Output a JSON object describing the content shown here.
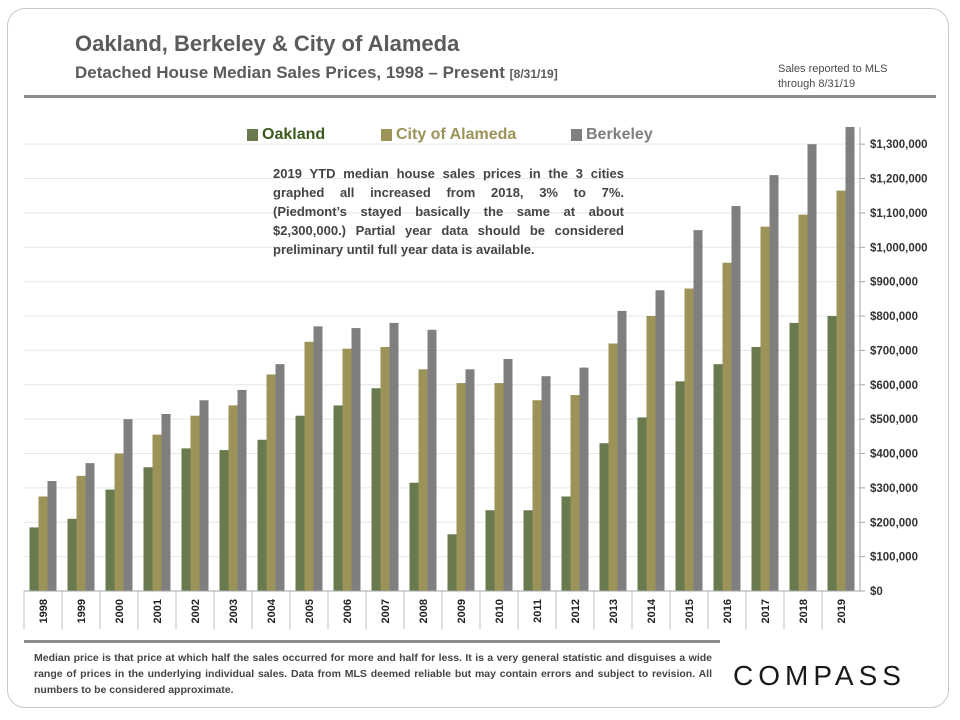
{
  "header": {
    "title": "Oakland, Berkeley & City of Alameda",
    "subtitle": "Detached House Median Sales Prices, 1998 – Present",
    "subtitle_date": "[8/31/19]",
    "mls_note_line1": "Sales reported to MLS",
    "mls_note_line2": "through 8/31/19"
  },
  "annotation": {
    "lines": [
      "2019 YTD median house sales prices in the 3 cities",
      "graphed all increased from 2018, 3% to 7%.",
      "(Piedmont’s stayed basically the same at about",
      "$2,300,000.) Partial year data should be considered",
      "preliminary until full year data is available."
    ]
  },
  "footnote": "Median price is that price at which half the sales occurred for more and half for less. It is a very general statistic and disguises a wide range of prices in the underlying individual sales. Data from MLS deemed reliable but may contain errors and subject to revision. All numbers to be considered approximate.",
  "brand": {
    "logo_text": "COMPASS"
  },
  "colors": {
    "oakland": "#697a4e",
    "alameda": "#9b9358",
    "berkeley": "#7f7f7f",
    "oakland_legend_text": "#3c5a1e",
    "alameda_legend_text": "#9b9358",
    "berkeley_legend_text": "#7f7f7f"
  },
  "chart_data": {
    "type": "bar",
    "title": "Oakland, Berkeley & City of Alameda",
    "subtitle": "Detached House Median Sales Prices, 1998 – Present",
    "categories": [
      "1998",
      "1999",
      "2000",
      "2001",
      "2002",
      "2003",
      "2004",
      "2005",
      "2006",
      "2007",
      "2008",
      "2009",
      "2010",
      "2011",
      "2012",
      "2013",
      "2014",
      "2015",
      "2016",
      "2017",
      "2018",
      "2019"
    ],
    "series": [
      {
        "name": "Oakland",
        "values": [
          185000,
          210000,
          295000,
          360000,
          415000,
          410000,
          440000,
          510000,
          540000,
          590000,
          315000,
          165000,
          235000,
          235000,
          275000,
          430000,
          505000,
          610000,
          660000,
          710000,
          780000,
          800000
        ]
      },
      {
        "name": "City of Alameda",
        "values": [
          275000,
          335000,
          400000,
          455000,
          510000,
          540000,
          630000,
          725000,
          705000,
          710000,
          645000,
          605000,
          605000,
          555000,
          570000,
          720000,
          800000,
          880000,
          955000,
          1060000,
          1095000,
          1165000
        ]
      },
      {
        "name": "Berkeley",
        "values": [
          320000,
          372000,
          500000,
          515000,
          555000,
          585000,
          660000,
          770000,
          765000,
          780000,
          760000,
          645000,
          675000,
          625000,
          650000,
          815000,
          875000,
          1050000,
          1120000,
          1210000,
          1300000,
          1350000
        ]
      }
    ],
    "ylim": [
      0,
      1350000
    ],
    "yticks": [
      0,
      100000,
      200000,
      300000,
      400000,
      500000,
      600000,
      700000,
      800000,
      900000,
      1000000,
      1100000,
      1200000,
      1300000
    ],
    "ytick_labels": [
      "$0",
      "$100,000",
      "$200,000",
      "$300,000",
      "$400,000",
      "$500,000",
      "$600,000",
      "$700,000",
      "$800,000",
      "$900,000",
      "$1,000,000",
      "$1,100,000",
      "$1,200,000",
      "$1,300,000"
    ],
    "grid": true,
    "y_axis_position": "right",
    "legend_position": "top-center"
  }
}
